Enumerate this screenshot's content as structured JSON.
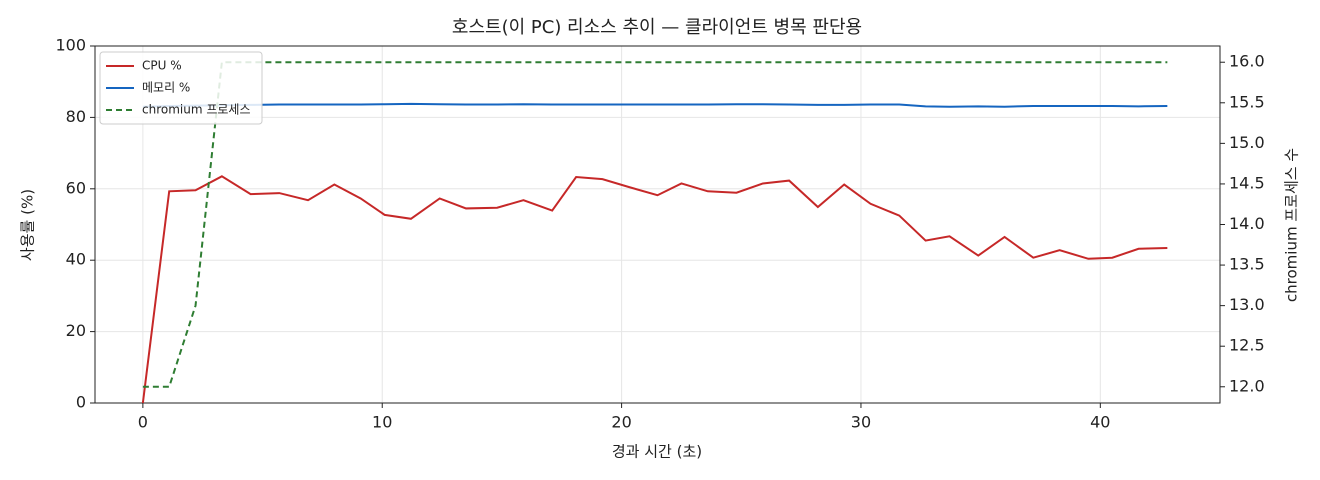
{
  "chart_data": {
    "type": "line",
    "title": "호스트(이 PC) 리소스 추이 — 클라이언트 병목 판단용",
    "x_label": "경과 시간 (초)",
    "y_label": "사용률 (%)",
    "y2_label": "chromium 프로세스 수",
    "x": [
      0,
      1.1,
      2.2,
      3.3,
      4.5,
      5.7,
      6.9,
      8.0,
      9.1,
      10.1,
      11.2,
      12.4,
      13.5,
      14.8,
      15.9,
      17.1,
      18.1,
      19.2,
      20.3,
      21.5,
      22.5,
      23.6,
      24.8,
      25.9,
      27.0,
      28.2,
      29.3,
      30.4,
      31.6,
      32.7,
      33.7,
      34.9,
      36.0,
      37.2,
      38.3,
      39.5,
      40.5,
      41.6,
      42.8
    ],
    "series": [
      {
        "name": "CPU %",
        "color": "#c62828",
        "linestyle": "solid",
        "values": [
          0,
          59.3,
          59.6,
          63.5,
          58.5,
          58.8,
          56.8,
          61.2,
          57.3,
          52.7,
          51.6,
          57.3,
          54.5,
          54.7,
          56.8,
          53.9,
          63.3,
          62.7,
          60.5,
          58.2,
          61.5,
          59.3,
          58.9,
          61.5,
          62.3,
          54.9,
          61.2,
          55.8,
          52.5,
          45.5,
          46.7,
          41.3,
          46.5,
          40.7,
          42.8,
          40.4,
          40.7,
          43.2,
          43.4
        ]
      },
      {
        "name": "메모리 %",
        "color": "#1565c0",
        "linestyle": "solid",
        "values": [
          83.0,
          83.2,
          83.3,
          83.4,
          83.5,
          83.6,
          83.6,
          83.6,
          83.6,
          83.7,
          83.8,
          83.7,
          83.6,
          83.6,
          83.7,
          83.6,
          83.6,
          83.6,
          83.6,
          83.6,
          83.6,
          83.6,
          83.7,
          83.7,
          83.6,
          83.5,
          83.5,
          83.6,
          83.6,
          83.1,
          83.0,
          83.1,
          83.0,
          83.2,
          83.2,
          83.2,
          83.2,
          83.1,
          83.2
        ]
      },
      {
        "name": "chromium 프로세스",
        "color": "#2e7d32",
        "linestyle": "dashed",
        "axis": "y2",
        "values": [
          12,
          12,
          13,
          16,
          16,
          16,
          16,
          16,
          16,
          16,
          16,
          16,
          16,
          16,
          16,
          16,
          16,
          16,
          16,
          16,
          16,
          16,
          16,
          16,
          16,
          16,
          16,
          16,
          16,
          16,
          16,
          16,
          16,
          16,
          16,
          16,
          16,
          16,
          16
        ]
      }
    ],
    "xlim": [
      -2,
      45
    ],
    "xticks": [
      0,
      10,
      20,
      30,
      40
    ],
    "ylim": [
      0,
      100
    ],
    "yticks": [
      0,
      20,
      40,
      60,
      80,
      100
    ],
    "y2lim": [
      11.8,
      16.2
    ],
    "y2ticks": [
      {
        "value": 12,
        "label": "12.0"
      },
      {
        "value": 12.5,
        "label": "12.5"
      },
      {
        "value": 13,
        "label": "13.0"
      },
      {
        "value": 13.5,
        "label": "13.5"
      },
      {
        "value": 14,
        "label": "14.0"
      },
      {
        "value": 14.5,
        "label": "14.5"
      },
      {
        "value": 15,
        "label": "15.0"
      },
      {
        "value": 15.5,
        "label": "15.5"
      },
      {
        "value": 16,
        "label": "16.0"
      }
    ],
    "grid": true,
    "legend": "upper-left"
  }
}
